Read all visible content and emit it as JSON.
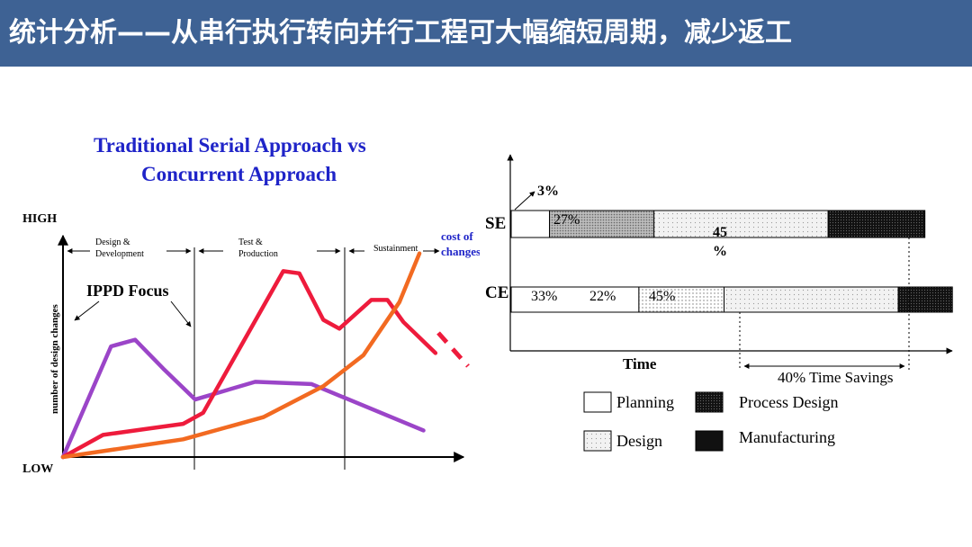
{
  "slide": {
    "title": "统计分析——从串行执行转向并行工程可大幅缩短周期，减少返工"
  },
  "chart_data": [
    {
      "type": "line",
      "title": "Traditional Serial Approach  vs",
      "subtitle": "Concurrent Approach",
      "ylabel": "number of design changes",
      "y_high_label": "HIGH",
      "y_low_label": "LOW",
      "phases": [
        "Design &\nDevelopment",
        "Test &\nProduction",
        "Sustainment"
      ],
      "annotations": {
        "ippd": "IPPD Focus",
        "cost": "cost of\nchanges"
      },
      "ylim": [
        0,
        10
      ],
      "series": [
        {
          "color": "#9b45c8",
          "values": [
            [
              0,
              0
            ],
            [
              1.2,
              5
            ],
            [
              1.8,
              5.3
            ],
            [
              2.5,
              4
            ],
            [
              3.3,
              2.6
            ],
            [
              4.8,
              3.4
            ],
            [
              6.2,
              3.3
            ],
            [
              9.0,
              1.2
            ]
          ]
        },
        {
          "color": "#ee1b3c",
          "values": [
            [
              0,
              0
            ],
            [
              1.0,
              1
            ],
            [
              2.2,
              1.3
            ],
            [
              3.0,
              1.5
            ],
            [
              3.5,
              2
            ],
            [
              5.5,
              8.4
            ],
            [
              5.9,
              8.3
            ],
            [
              6.5,
              6.2
            ],
            [
              6.9,
              5.8
            ],
            [
              7.7,
              7.1
            ],
            [
              8.1,
              7.1
            ],
            [
              8.5,
              6.1
            ],
            [
              9.3,
              4.7
            ]
          ]
        },
        {
          "color": "#f26a21",
          "values": [
            [
              0,
              0
            ],
            [
              3.0,
              0.8
            ],
            [
              5.0,
              1.8
            ],
            [
              6.5,
              3.2
            ],
            [
              7.5,
              4.6
            ],
            [
              8.4,
              7
            ],
            [
              8.9,
              9.2
            ]
          ]
        }
      ]
    },
    {
      "type": "bar",
      "xlabel": "Time",
      "categories": [
        "SE",
        "CE"
      ],
      "series_labels": [
        "3%",
        "27%",
        "45\n%",
        "",
        "33%",
        "22%",
        "45%",
        ""
      ],
      "values": {
        "SE": [
          3,
          27,
          45,
          25
        ],
        "CE": [
          33,
          22,
          45,
          14
        ]
      },
      "savings_label": "40% Time Savings",
      "legend": [
        "Planning",
        "Process Design",
        "Design",
        "Manufacturing"
      ]
    }
  ]
}
